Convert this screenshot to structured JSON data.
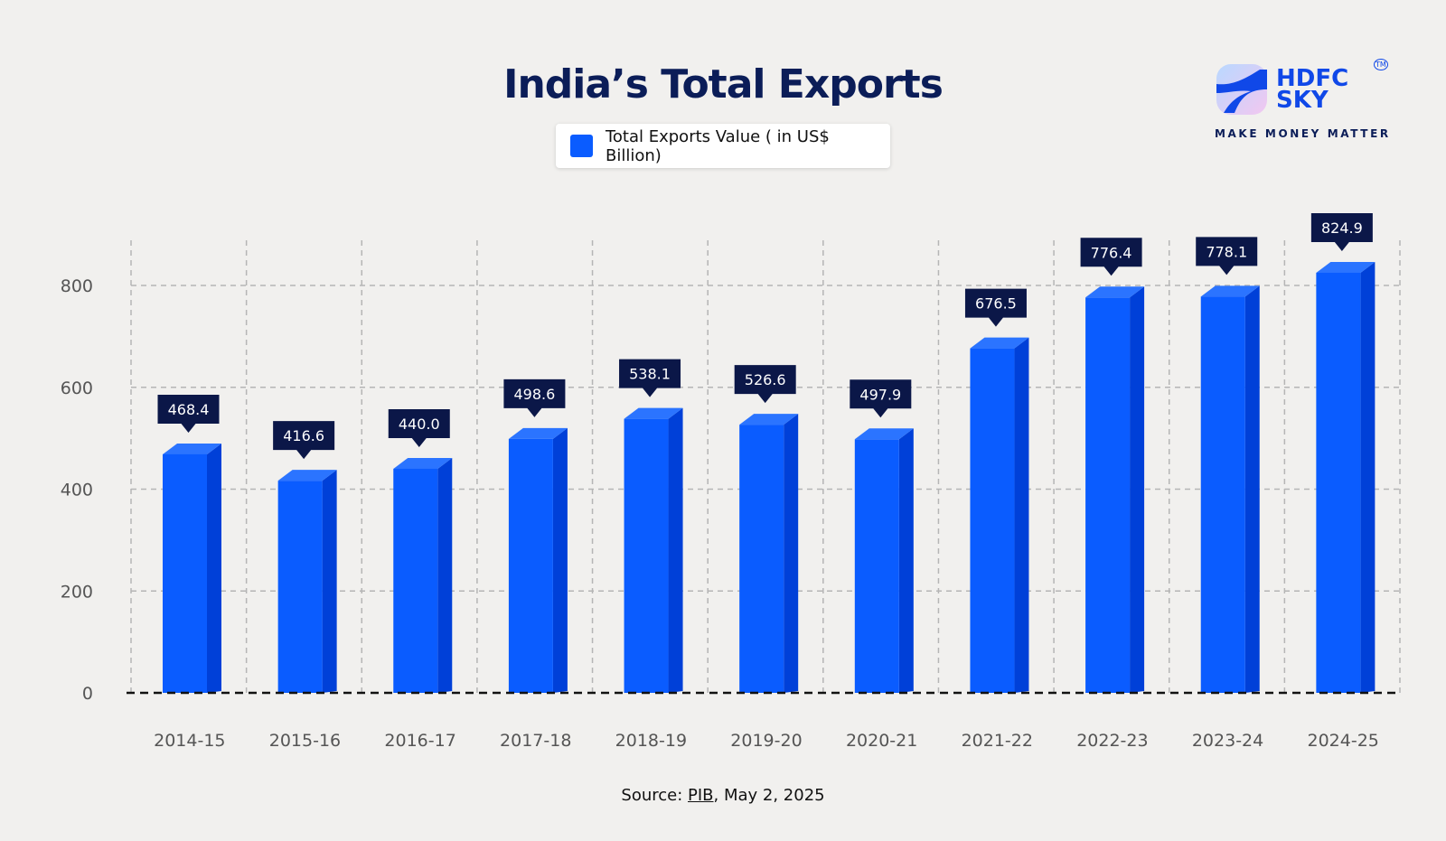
{
  "chart_data": {
    "type": "bar",
    "title": "India’s Total Exports",
    "categories": [
      "2014-15",
      "2015-16",
      "2016-17",
      "2017-18",
      "2018-19",
      "2019-20",
      "2020-21",
      "2021-22",
      "2022-23",
      "2023-24",
      "2024-25"
    ],
    "series": [
      {
        "name": "Total Exports Value ( in US$ Billion)",
        "values": [
          468.4,
          416.6,
          440.0,
          498.6,
          538.1,
          526.6,
          497.9,
          676.5,
          776.4,
          778.1,
          824.9
        ],
        "labels": [
          "468.4",
          "416.6",
          "440.0",
          "498.6",
          "538.1",
          "526.6",
          "497.9",
          "676.5",
          "776.4",
          "778.1",
          "824.9"
        ]
      }
    ],
    "yticks": [
      "0",
      "200",
      "400",
      "600",
      "800"
    ],
    "ylim": [
      0,
      800
    ],
    "grid": true,
    "legend_position": "top-center",
    "colors": {
      "bar": "#0a5cff",
      "label_bg": "#0b1748",
      "title": "#0b1d58"
    }
  },
  "logo": {
    "brand_line1": "HDFC",
    "brand_line2": "SKY",
    "tagline": "MAKE MONEY MATTER",
    "tm": "TM"
  },
  "source": {
    "prefix": "Source: ",
    "link": "PIB",
    "suffix": ", May 2, 2025"
  }
}
